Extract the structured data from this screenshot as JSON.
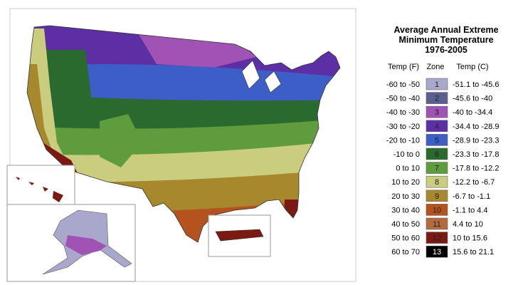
{
  "legend": {
    "title_lines": [
      "Average Annual Extreme",
      "Minimum Temperature",
      "1976-2005"
    ],
    "headers": [
      "Temp (F)",
      "Zone",
      "Temp (C)"
    ],
    "rows": [
      {
        "temp_f": "-60 to -50",
        "zone": "1",
        "temp_c": "-51.1 to -45.6",
        "color": "#a9a8cc"
      },
      {
        "temp_f": "-50 to -40",
        "zone": "2",
        "temp_c": "-45.6 to -40",
        "color": "#5b5f8f"
      },
      {
        "temp_f": "-40 to -30",
        "zone": "3",
        "temp_c": "-40 to -34.4",
        "color": "#a053b4"
      },
      {
        "temp_f": "-30 to -20",
        "zone": "4",
        "temp_c": "-34.4 to -28.9",
        "color": "#5d2fa5"
      },
      {
        "temp_f": "-20 to -10",
        "zone": "5",
        "temp_c": "-28.9 to -23.3",
        "color": "#3d5ec6"
      },
      {
        "temp_f": "-10 to 0",
        "zone": "6",
        "temp_c": "-23.3 to -17.8",
        "color": "#2b6a2f"
      },
      {
        "temp_f": "0 to 10",
        "zone": "7",
        "temp_c": "-17.8 to -12.2",
        "color": "#5f9c3d"
      },
      {
        "temp_f": "10 to 20",
        "zone": "8",
        "temp_c": "-12.2 to -6.7",
        "color": "#cacd7d"
      },
      {
        "temp_f": "20 to 30",
        "zone": "9",
        "temp_c": "-6.7 to -1.1",
        "color": "#a8882d"
      },
      {
        "temp_f": "30 to 40",
        "zone": "10",
        "temp_c": "-1.1 to 4.4",
        "color": "#b5531f"
      },
      {
        "temp_f": "40 to 50",
        "zone": "11",
        "temp_c": "4.4 to 10",
        "color": "#b36b3b"
      },
      {
        "temp_f": "50 to 60",
        "zone": "12",
        "temp_c": "10 to 15.6",
        "color": "#7a1a12"
      },
      {
        "temp_f": "60 to 70",
        "zone": "13",
        "temp_c": "15.6 to 21.1",
        "color": "#000000"
      }
    ]
  }
}
